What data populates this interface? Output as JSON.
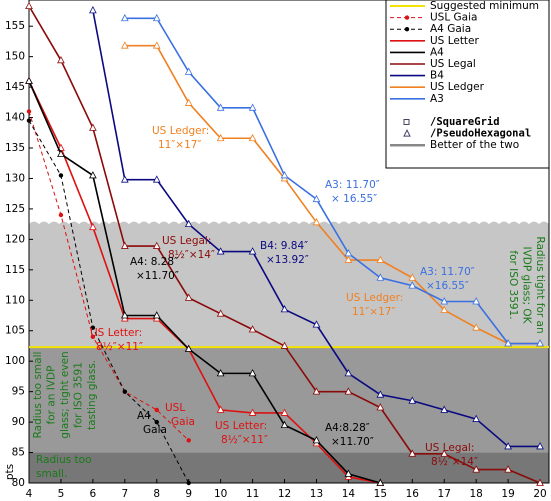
{
  "chart_data": {
    "type": "line",
    "x": [
      4,
      5,
      6,
      7,
      8,
      9,
      10,
      11,
      12,
      13,
      14,
      15,
      16,
      17,
      18,
      19,
      20
    ],
    "xlim": [
      4,
      20.28
    ],
    "xticks": [
      4,
      5,
      6,
      7,
      8,
      9,
      10,
      11,
      12,
      13,
      14,
      15,
      16,
      17,
      18,
      19,
      20
    ],
    "ylim": [
      80,
      159.3
    ],
    "yticks": [
      80,
      85,
      90,
      95,
      100,
      105,
      110,
      115,
      120,
      125,
      130,
      135,
      140,
      145,
      150,
      155
    ],
    "ylabel": "pts",
    "reference_line": {
      "name": "Suggested minimum",
      "value": 102.3,
      "color": "#f2e200"
    },
    "series": [
      {
        "name": "USL Gaia",
        "color": "#dd1111",
        "dashed": true,
        "marker": "dot",
        "values": [
          141,
          124,
          104,
          95,
          92,
          87,
          null,
          null,
          null,
          null,
          null,
          null,
          null,
          null,
          null,
          null,
          null
        ]
      },
      {
        "name": "A4 Gaia",
        "color": "#000000",
        "dashed": true,
        "marker": "dot",
        "values": [
          139.5,
          130.5,
          105.5,
          95,
          90,
          80,
          null,
          null,
          null,
          null,
          null,
          null,
          null,
          null,
          null,
          null,
          null
        ]
      },
      {
        "name": "US Letter",
        "color": "#dd1111",
        "values": [
          146,
          135,
          122,
          107,
          107,
          102,
          92,
          91.5,
          91.5,
          86.5,
          81,
          80,
          null,
          null,
          null,
          null,
          null
        ]
      },
      {
        "name": "A4",
        "color": "#000000",
        "values": [
          146,
          134,
          130.5,
          107.5,
          107.5,
          102,
          98,
          98,
          89.5,
          87,
          81.5,
          80,
          null,
          null,
          null,
          null,
          null
        ]
      },
      {
        "name": "US Legal",
        "color": "#8b0a0a",
        "values": [
          158.3,
          149.4,
          138.3,
          118.9,
          118.9,
          110.4,
          107.8,
          105.2,
          102.5,
          95,
          95,
          92.4,
          84.8,
          84.8,
          82.2,
          82.2,
          80
        ]
      },
      {
        "name": "B4",
        "color": "#0a0a80",
        "values": [
          null,
          null,
          157.6,
          129.8,
          129.8,
          122.5,
          118,
          118,
          108.5,
          106,
          98,
          94.5,
          93.5,
          92,
          90.5,
          86,
          86
        ]
      },
      {
        "name": "US Ledger",
        "color": "#f08020",
        "values": [
          null,
          null,
          null,
          151.8,
          151.8,
          142.4,
          136.6,
          136.6,
          130,
          122.8,
          116.6,
          116.6,
          113.7,
          108.4,
          105.5,
          102.9,
          102.9
        ]
      },
      {
        "name": "A3",
        "color": "#3a70e0",
        "values": [
          null,
          null,
          null,
          156.3,
          156.3,
          147.5,
          141.6,
          141.6,
          130.5,
          126.6,
          117.7,
          113.7,
          112.4,
          109.8,
          109.8,
          102.9,
          102.9
        ]
      }
    ],
    "marker_legend": [
      "/SquareGrid",
      "/PseudoHexagonal",
      "Better of the two"
    ],
    "regions": [
      {
        "from": 80,
        "to": 85,
        "color": "#777777",
        "lines": [
          "Radius too",
          "small."
        ]
      },
      {
        "from": 85,
        "to": 102.3,
        "color": "#999999",
        "lines": [
          "Radius too small",
          "for an IVDP",
          "glass; tight even",
          "for ISO 3591",
          "tasting glass."
        ]
      },
      {
        "from": 102.3,
        "to": 122.5,
        "color": "#c6c6c6",
        "lines": [
          "Radius tight for an",
          "IVDP glass; OK",
          "for ISO 3591."
        ]
      }
    ],
    "annotations": [
      {
        "lines": [
          "US Ledger:",
          "11″×17″"
        ],
        "color": "#f08020"
      },
      {
        "lines": [
          "A3: 11.70″",
          "× 16.55″"
        ],
        "color": "#3a70e0"
      },
      {
        "lines": [
          "US Legal:",
          "8½″×14″"
        ],
        "color": "#8b0a0a"
      },
      {
        "lines": [
          "B4: 9.84″",
          "×13.92″"
        ],
        "color": "#0a0a80"
      },
      {
        "lines": [
          "A4: 8.28″",
          "×11.70″"
        ],
        "color": "#000000"
      },
      {
        "lines": [
          "A3: 11.70″",
          "×16.55″"
        ],
        "color": "#3a70e0"
      },
      {
        "lines": [
          "US Ledger:",
          "11″×17″"
        ],
        "color": "#f08020"
      },
      {
        "lines": [
          "US Letter:",
          "8½″×11″"
        ],
        "color": "#dd1111"
      },
      {
        "lines": [
          "USL",
          "Gaia"
        ],
        "color": "#dd1111"
      },
      {
        "lines": [
          "A4",
          "Gaia"
        ],
        "color": "#000000"
      },
      {
        "lines": [
          "US Letter:",
          "8½″×11″"
        ],
        "color": "#dd1111"
      },
      {
        "lines": [
          "A4:8.28″",
          "×11.70″"
        ],
        "color": "#000000"
      },
      {
        "lines": [
          "US Legal:",
          "8½″×14″"
        ],
        "color": "#8b0a0a"
      }
    ]
  }
}
